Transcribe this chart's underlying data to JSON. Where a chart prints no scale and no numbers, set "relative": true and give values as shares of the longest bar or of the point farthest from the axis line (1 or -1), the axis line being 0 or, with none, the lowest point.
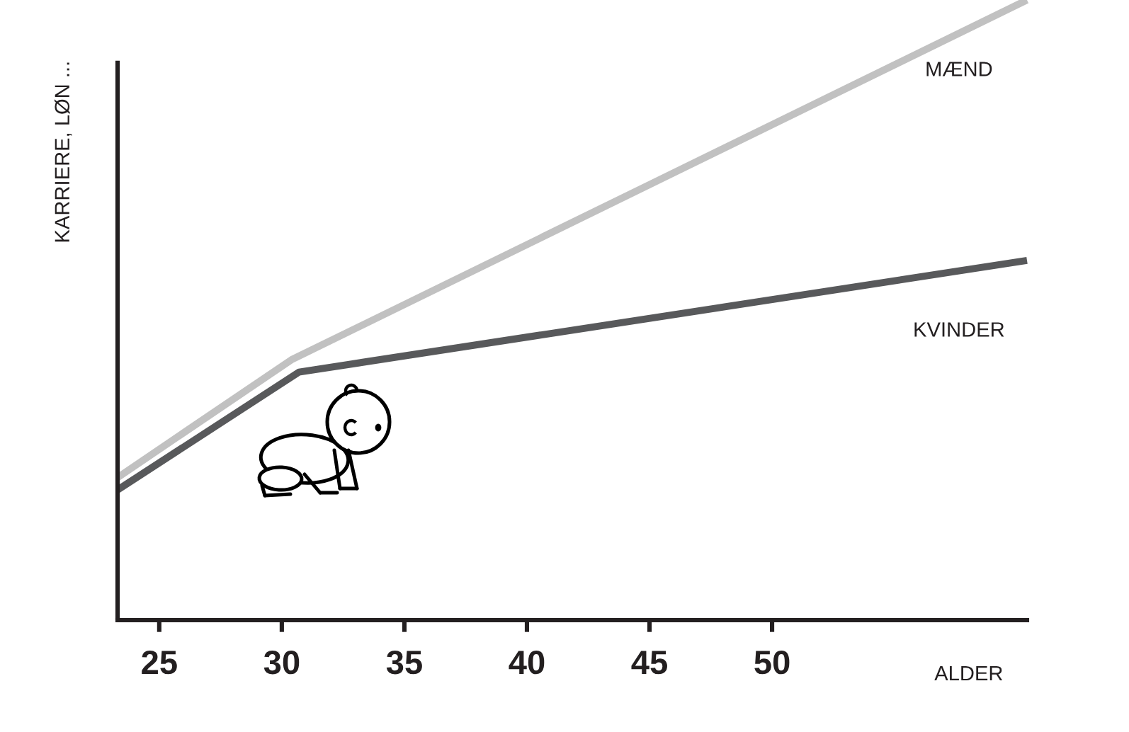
{
  "chart_data": {
    "type": "line",
    "relative": true,
    "xlabel": "ALDER",
    "ylabel": "KARRIERE, LØN ...",
    "series": [
      {
        "name": "MÆND",
        "color": "#c1c1c1",
        "x": [
          23.3,
          30.4,
          60.4
        ],
        "values": [
          0.23,
          0.42,
          1
        ]
      },
      {
        "name": "KVINDER",
        "color": "#58595b",
        "x": [
          23.3,
          30.7,
          60.4
        ],
        "values": [
          0.21,
          0.4,
          0.58
        ]
      }
    ],
    "xlim": [
      23.3,
      60.4
    ],
    "xticks": [
      25,
      30,
      35,
      40,
      45,
      50
    ],
    "tick_labels": "x",
    "grid": false,
    "line_style": "solid"
  }
}
